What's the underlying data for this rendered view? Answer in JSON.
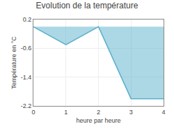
{
  "chart_data": {
    "type": "area",
    "title": "Evolution de la température",
    "xlabel": "heure par heure",
    "ylabel": "Température en °C",
    "x": [
      0,
      1,
      2,
      3,
      4
    ],
    "values": [
      0.0,
      -0.5,
      0.0,
      -2.0,
      -2.0
    ],
    "xlim": [
      0,
      4
    ],
    "ylim": [
      -2.2,
      0.2
    ],
    "xticks": [
      0,
      1,
      2,
      3,
      4
    ],
    "yticks": [
      0.2,
      -0.6,
      -1.4,
      -2.2
    ],
    "grid": true,
    "color": "#5ab0cc"
  }
}
